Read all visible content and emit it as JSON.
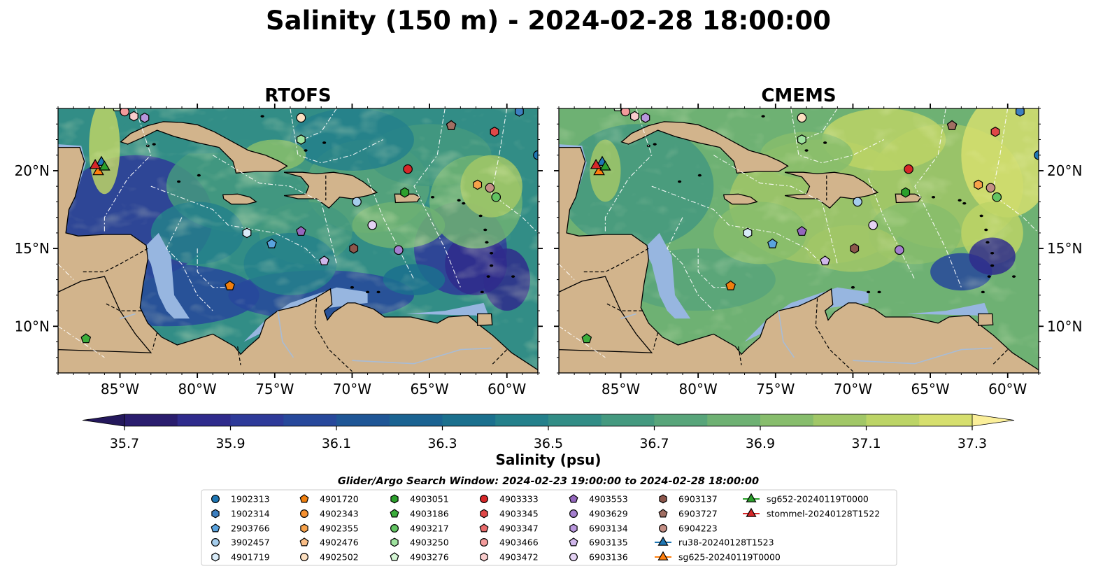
{
  "title": "Salinity (150 m) - 2024-02-28 18:00:00",
  "panels": [
    {
      "title": "RTOFS",
      "palette": "rtofs"
    },
    {
      "title": "CMEMS",
      "palette": "cmems"
    }
  ],
  "lon_ticks": [
    "85°W",
    "80°W",
    "75°W",
    "70°W",
    "65°W",
    "60°W"
  ],
  "lon_values": [
    -85,
    -80,
    -75,
    -70,
    -65,
    -60
  ],
  "lat_ticks": [
    "20°N",
    "15°N",
    "10°N"
  ],
  "lat_values": [
    20,
    15,
    10
  ],
  "extent": {
    "lon_min": -89,
    "lon_max": -58,
    "lat_min": 7,
    "lat_max": 24
  },
  "colorbar": {
    "label": "Salinity (psu)",
    "ticks": [
      "35.7",
      "35.9",
      "36.1",
      "36.3",
      "36.5",
      "36.7",
      "36.9",
      "37.1",
      "37.3"
    ],
    "tick_values": [
      35.7,
      35.9,
      36.1,
      36.3,
      36.5,
      36.7,
      36.9,
      37.1,
      37.3
    ],
    "min": 35.7,
    "max": 37.3,
    "step": 0.1,
    "colors": [
      "#2a1d6e",
      "#2f2b8c",
      "#2e3a99",
      "#27489b",
      "#1f5696",
      "#1a6392",
      "#1b708e",
      "#24808b",
      "#328d86",
      "#44997f",
      "#58a57a",
      "#6eb173",
      "#87bd6c",
      "#a1c767",
      "#bcd466",
      "#d6df6e"
    ],
    "under_color": "#24185c",
    "over_color": "#fbef9a"
  },
  "search_window": "Glider/Argo Search Window: 2024-02-23 19:00:00 to 2024-02-28 18:00:00",
  "legend": [
    {
      "label": "1902313",
      "marker": "circle",
      "color": "#1f77b4",
      "lon": -58,
      "lat": 21.0
    },
    {
      "label": "1902314",
      "marker": "hexagon",
      "color": "#3d7fc0",
      "lon": -59.2,
      "lat": 23.8
    },
    {
      "label": "2903766",
      "marker": "pentagon",
      "color": "#5aa3de",
      "lon": -75.2,
      "lat": 15.3
    },
    {
      "label": "3902457",
      "marker": "circle",
      "color": "#a5cdec",
      "lon": -69.7,
      "lat": 18.0
    },
    {
      "label": "4901719",
      "marker": "hexagon",
      "color": "#d8ebf8",
      "lon": -76.8,
      "lat": 16.0
    },
    {
      "label": "4901720",
      "marker": "pentagon",
      "color": "#f07f0e",
      "lon": -77.9,
      "lat": 12.6
    },
    {
      "label": "4902343",
      "marker": "circle",
      "color": "#f59030",
      "lon": null,
      "lat": null
    },
    {
      "label": "4902355",
      "marker": "hexagon",
      "color": "#f7a24a",
      "lon": -61.9,
      "lat": 19.1
    },
    {
      "label": "4902476",
      "marker": "pentagon",
      "color": "#f9bd86",
      "lon": null,
      "lat": null
    },
    {
      "label": "4902502",
      "marker": "circle",
      "color": "#fcdfc0",
      "lon": -73.3,
      "lat": 23.4
    },
    {
      "label": "4903051",
      "marker": "hexagon",
      "color": "#2ca02c",
      "lon": -66.6,
      "lat": 18.6
    },
    {
      "label": "4903186",
      "marker": "pentagon",
      "color": "#3bad3b",
      "lon": -87.2,
      "lat": 9.2
    },
    {
      "label": "4903217",
      "marker": "circle",
      "color": "#62c462",
      "lon": -60.7,
      "lat": 18.3
    },
    {
      "label": "4903250",
      "marker": "hexagon",
      "color": "#9ee29e",
      "lon": -73.3,
      "lat": 22.0
    },
    {
      "label": "4903276",
      "marker": "pentagon",
      "color": "#d4f5d4",
      "lon": -85.2,
      "lat": 24.1
    },
    {
      "label": "4903333",
      "marker": "circle",
      "color": "#d62728",
      "lon": -66.4,
      "lat": 20.1
    },
    {
      "label": "4903345",
      "marker": "hexagon",
      "color": "#e04848",
      "lon": -60.8,
      "lat": 22.5
    },
    {
      "label": "4903347",
      "marker": "pentagon",
      "color": "#e86a6a",
      "lon": -63.6,
      "lat": 22.9
    },
    {
      "label": "4903466",
      "marker": "circle",
      "color": "#f39b9b",
      "lon": -84.7,
      "lat": 23.8
    },
    {
      "label": "4903472",
      "marker": "hexagon",
      "color": "#f9cccc",
      "lon": -84.1,
      "lat": 23.5
    },
    {
      "label": "4903553",
      "marker": "pentagon",
      "color": "#9467bd",
      "lon": -73.3,
      "lat": 16.1
    },
    {
      "label": "4903629",
      "marker": "circle",
      "color": "#a57fcf",
      "lon": -67.0,
      "lat": 14.9
    },
    {
      "label": "6903134",
      "marker": "hexagon",
      "color": "#b896dc",
      "lon": -83.4,
      "lat": 23.4
    },
    {
      "label": "6903135",
      "marker": "pentagon",
      "color": "#cfb6ea",
      "lon": -71.8,
      "lat": 14.2
    },
    {
      "label": "6903136",
      "marker": "circle",
      "color": "#e4d2f4",
      "lon": -68.7,
      "lat": 16.5
    },
    {
      "label": "6903137",
      "marker": "hexagon",
      "color": "#8c564b",
      "lon": -69.9,
      "lat": 15.0
    },
    {
      "label": "6903727",
      "marker": "pentagon",
      "color": "#a06e62",
      "lon": -63.6,
      "lat": 22.9
    },
    {
      "label": "6904223",
      "marker": "circle",
      "color": "#c48f85",
      "lon": -61.1,
      "lat": 18.9
    },
    {
      "label": "ru38-20240128T1523",
      "marker": "triangle-line",
      "color": "#1f77b4",
      "lon": -86.2,
      "lat": 20.6
    },
    {
      "label": "sg625-20240119T0000",
      "marker": "triangle-line",
      "color": "#ff7f0e",
      "lon": -86.4,
      "lat": 20.0
    },
    {
      "label": "sg652-20240119T0000",
      "marker": "triangle-line",
      "color": "#2ca02c",
      "lon": -86.0,
      "lat": 20.3
    },
    {
      "label": "stommel-20240128T1522",
      "marker": "triangle-line",
      "color": "#d62728",
      "lon": -86.6,
      "lat": 20.4
    }
  ]
}
